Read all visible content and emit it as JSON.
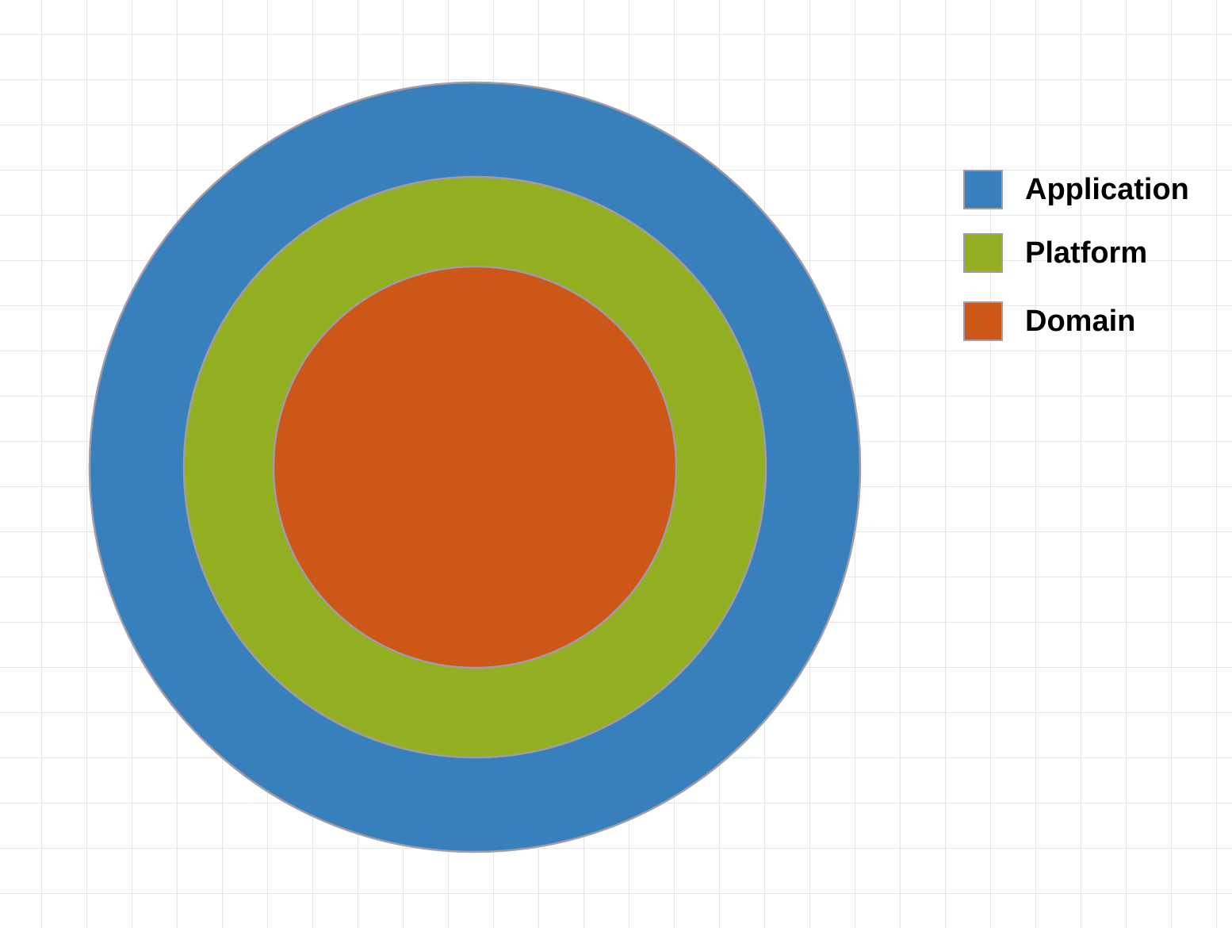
{
  "diagram": {
    "layers": [
      {
        "id": "application",
        "label": "Application",
        "color": "#3880bb"
      },
      {
        "id": "platform",
        "label": "Platform",
        "color": "#93af22"
      },
      {
        "id": "domain",
        "label": "Domain",
        "color": "#cc5718"
      }
    ],
    "outline_color": "#a39ca8",
    "grid_color": "#e6e6e6"
  }
}
